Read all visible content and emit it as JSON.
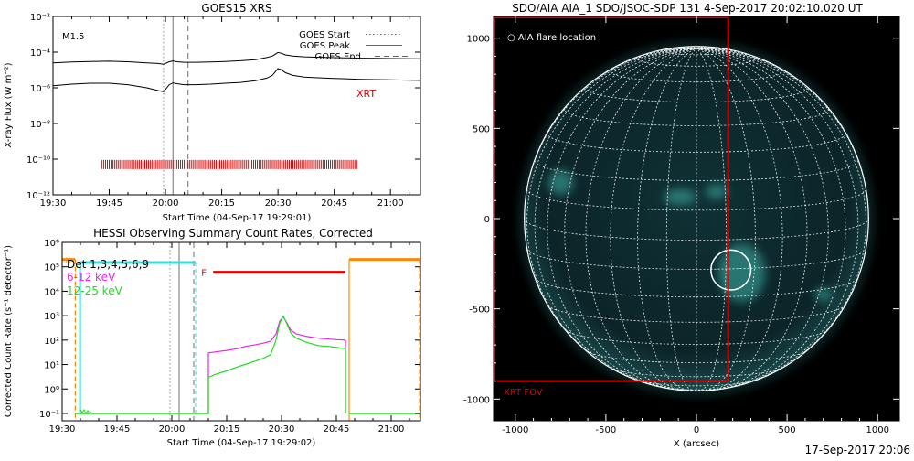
{
  "colors": {
    "background": "#ffffff",
    "axis": "#000000",
    "goes_lines": "#000000",
    "xrt_marks": "#dd0000",
    "hessi_det": "#33dddd",
    "hessi_6_12": "#ee22ee",
    "hessi_12_25": "#22dd22",
    "hessi_orange": "#ff8800",
    "flare_bar": "#dd0000",
    "aia_background": "#000000",
    "aia_disk": "#0b2226",
    "aia_grid": "#ffffff",
    "aia_xrt_box": "#dd0000",
    "aia_active_region": "#3fb3a8"
  },
  "footer": {
    "date": "17-Sep-2017 20:06"
  },
  "chart_data": [
    {
      "type": "line",
      "title": "GOES15 XRS",
      "ylabel": "X-ray Flux (W m⁻²)",
      "xlabel": "Start Time (04-Sep-17 19:29:01)",
      "x_ticks": [
        "19:30",
        "19:45",
        "20:00",
        "20:15",
        "20:30",
        "20:45",
        "21:00"
      ],
      "x_tick_minutes": [
        30,
        45,
        60,
        75,
        90,
        105,
        120
      ],
      "x_range_minutes": [
        30,
        128
      ],
      "y_scale": "log",
      "y_range": [
        1e-12,
        0.01
      ],
      "y_ticks": [
        {
          "value": 1e-12,
          "label": "10⁻¹²"
        },
        {
          "value": 1e-10,
          "label": "10⁻¹⁰"
        },
        {
          "value": 1e-08,
          "label": "10⁻⁸"
        },
        {
          "value": 1e-06,
          "label": "10⁻⁶"
        },
        {
          "value": 0.0001,
          "label": "10⁻⁴"
        },
        {
          "value": 0.01,
          "label": "10⁻²"
        }
      ],
      "class_label": "M1.5",
      "legend": [
        {
          "name": "GOES Start",
          "style": "dotted"
        },
        {
          "name": "GOES Peak",
          "style": "solid"
        },
        {
          "name": "GOES End",
          "style": "dashed"
        }
      ],
      "goes_start": 59.5,
      "goes_peak": 62.0,
      "goes_end": 66.0,
      "annotation": "XRT",
      "series": [
        {
          "x": [
            30,
            35,
            40,
            45,
            50,
            55,
            58,
            59.5,
            61,
            62,
            63,
            65,
            68,
            72,
            76,
            80,
            84,
            87,
            88.5,
            90,
            91,
            92,
            94,
            97,
            100,
            104,
            108,
            112,
            116,
            120,
            124,
            128
          ],
          "y": [
            2.5e-05,
            2.8e-05,
            3e-05,
            3.1e-05,
            2.9e-05,
            2.5e-05,
            2.3e-05,
            2.1e-05,
            2.9e-05,
            3.2e-05,
            2.9e-05,
            2.7e-05,
            2.7e-05,
            2.8e-05,
            3e-05,
            3.3e-05,
            3.8e-05,
            5e-05,
            6e-05,
            9.5e-05,
            8.5e-05,
            7e-05,
            6e-05,
            5.5e-05,
            5.2e-05,
            5e-05,
            4.8e-05,
            4.6e-05,
            4.5e-05,
            4.4e-05,
            4.3e-05,
            4.2e-05
          ]
        },
        {
          "x": [
            30,
            35,
            40,
            45,
            50,
            55,
            58,
            59.5,
            61,
            62,
            63,
            65,
            68,
            72,
            76,
            80,
            84,
            87,
            88.5,
            90,
            91,
            92,
            94,
            97,
            100,
            104,
            108,
            112,
            116,
            120,
            124,
            128
          ],
          "y": [
            1.3e-06,
            1.6e-06,
            1.8e-06,
            1.8e-06,
            1.5e-06,
            1e-06,
            7e-07,
            6e-07,
            1.5e-06,
            1.9e-06,
            1.7e-06,
            1.5e-06,
            1.5e-06,
            1.6e-06,
            1.8e-06,
            2e-06,
            2.5e-06,
            3.5e-06,
            5e-06,
            1.2e-05,
            1e-05,
            7e-06,
            5e-06,
            4e-06,
            3.7e-06,
            3.4e-06,
            3.2e-06,
            3e-06,
            2.9e-06,
            2.8e-06,
            2.7e-06,
            2.6e-06
          ]
        }
      ],
      "xrt_obs": {
        "y": 5e-11,
        "start": 43,
        "end": 111,
        "spacing": 0.5
      }
    },
    {
      "type": "line",
      "title": "HESSI Observing Summary Count Rates, Corrected",
      "ylabel": "Corrected Count Rate (s⁻¹ detector⁻¹)",
      "xlabel": "Start Time (04-Sep-17 19:29:02)",
      "x_ticks": [
        "19:30",
        "19:45",
        "20:00",
        "20:15",
        "20:30",
        "20:45",
        "21:00"
      ],
      "x_tick_minutes": [
        30,
        45,
        60,
        75,
        90,
        105,
        120
      ],
      "x_range_minutes": [
        30,
        128
      ],
      "y_scale": "log",
      "y_range": [
        0.05,
        1000000.0
      ],
      "y_ticks": [
        {
          "value": 0.1,
          "label": "10⁻¹"
        },
        {
          "value": 1,
          "label": "10⁰"
        },
        {
          "value": 10,
          "label": "10¹"
        },
        {
          "value": 100,
          "label": "10²"
        },
        {
          "value": 1000,
          "label": "10³"
        },
        {
          "value": 10000,
          "label": "10⁴"
        },
        {
          "value": 100000,
          "label": "10⁵"
        },
        {
          "value": 1000000,
          "label": "10⁶"
        }
      ],
      "legend": [
        {
          "name": "Det 1,3,4,5,6,9",
          "color": "#000000"
        },
        {
          "name": "6-12 keV",
          "color": "#ee22ee"
        },
        {
          "name": "12-25 keV",
          "color": "#22dd22"
        }
      ],
      "goes_start": 59.5,
      "goes_peak": 62.0,
      "goes_end": 66.0,
      "markers": [
        "N",
        "F"
      ],
      "series": [
        {
          "name": "6-12 keV",
          "x": [
            70,
            72,
            75,
            78,
            80,
            83,
            85,
            87,
            88.5,
            89.5,
            90.5,
            91.5,
            92.5,
            94,
            97,
            100,
            103,
            105,
            107.5
          ],
          "y": [
            30,
            33,
            38,
            45,
            55,
            65,
            75,
            90,
            180,
            600,
            900,
            500,
            260,
            180,
            140,
            120,
            110,
            105,
            100
          ]
        },
        {
          "name": "12-25 keV",
          "x": [
            70,
            72,
            75,
            78,
            80,
            83,
            85,
            87,
            88.5,
            89.5,
            90.5,
            91.5,
            92.5,
            94,
            97,
            100,
            103,
            105,
            107.5
          ],
          "y": [
            3,
            4,
            5.5,
            8,
            10,
            14,
            18,
            25,
            100,
            500,
            950,
            450,
            200,
            120,
            80,
            60,
            55,
            50,
            45
          ]
        }
      ],
      "orange_level": 200000.0,
      "orange_segments": [
        [
          30,
          33.6
        ],
        [
          108.5,
          128
        ]
      ],
      "cyan_level": 150000.0,
      "cyan_segment": [
        34.9,
        66.5
      ],
      "flare_bar": {
        "y": 60000,
        "start": 71.3,
        "end": 107.5
      },
      "flare_bar_label": "F"
    },
    {
      "type": "scatter",
      "title": "SDO/AIA AIA_1 SDO/JSOC-SDP 131   4-Sep-2017 20:02:10.020 UT",
      "xlabel": "X (arcsec)",
      "ylabel": "",
      "x_ticks": [
        -1000,
        -500,
        0,
        500,
        1000
      ],
      "y_ticks": [
        1000,
        500,
        0,
        -500,
        -1000
      ],
      "x_range": [
        -1120,
        1120
      ],
      "y_range": [
        -1120,
        1120
      ],
      "solar_radius_arcsec": 950,
      "b0_degrees": 7.2,
      "legend": "○ AIA flare location",
      "flare_location": {
        "x": 190,
        "y": -285
      },
      "xrt_fov": {
        "x0": -1120,
        "x1": 175,
        "y0": -900,
        "y1": 1120
      },
      "xrt_fov_label": "XRT FOV",
      "active_regions": [
        {
          "x": -750,
          "y": 200,
          "rx": 70,
          "ry": 70
        },
        {
          "x": -90,
          "y": 120,
          "rx": 90,
          "ry": 45
        },
        {
          "x": 250,
          "y": -300,
          "rx": 130,
          "ry": 160
        },
        {
          "x": 110,
          "y": 150,
          "rx": 60,
          "ry": 40
        },
        {
          "x": 700,
          "y": -420,
          "rx": 50,
          "ry": 35
        }
      ]
    }
  ]
}
